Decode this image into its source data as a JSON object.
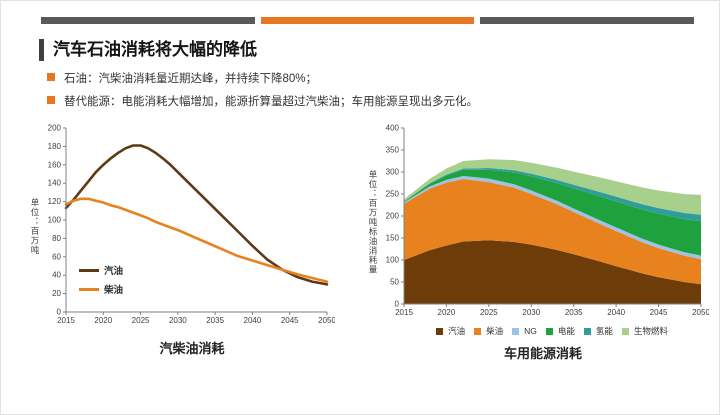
{
  "slide": {
    "title": "汽车石油消耗将大幅的降低",
    "bullets": [
      "石油：汽柴油消耗量近期达峰，并持续下降80%；",
      "替代能源：电能消耗大幅增加，能源折算量超过汽柴油；车用能源呈现出多元化。"
    ]
  },
  "colors": {
    "accent_orange": "#e87722",
    "accent_gray": "#595959",
    "gasoline_brown": "#5e3a14",
    "diesel_orange": "#e8821f",
    "electric_green": "#1fa23e",
    "ng_blue": "#9dc3e6",
    "hydrogen_teal": "#2f9e9b",
    "biofuel_green": "#a8d08d"
  },
  "chart_data": [
    {
      "type": "line",
      "title": "汽柴油消耗",
      "ylabel": "单位：百万吨",
      "xlabel": "",
      "xlim": [
        2015,
        2050
      ],
      "ylim": [
        0,
        200
      ],
      "xticks": [
        2015,
        2020,
        2025,
        2030,
        2035,
        2040,
        2045,
        2050
      ],
      "yticks": [
        0,
        20,
        40,
        60,
        80,
        100,
        120,
        140,
        160,
        180,
        200
      ],
      "grid": false,
      "legend_marker": "line",
      "legend_position": "inside-lower-left",
      "x": [
        2015,
        2016,
        2017,
        2018,
        2019,
        2020,
        2021,
        2022,
        2023,
        2024,
        2025,
        2026,
        2027,
        2028,
        2029,
        2030,
        2032,
        2034,
        2036,
        2038,
        2040,
        2042,
        2044,
        2046,
        2048,
        2050
      ],
      "series": [
        {
          "name": "汽油",
          "color": "#5e3a14",
          "values": [
            113,
            122,
            132,
            142,
            152,
            160,
            167,
            173,
            178,
            181,
            181,
            178,
            173,
            167,
            160,
            152,
            136,
            120,
            104,
            88,
            72,
            57,
            46,
            38,
            33,
            30
          ]
        },
        {
          "name": "柴油",
          "color": "#e8821f",
          "values": [
            117,
            121,
            123,
            123,
            121,
            119,
            116,
            114,
            111,
            108,
            105,
            102,
            98,
            95,
            92,
            89,
            82,
            75,
            68,
            61,
            56,
            51,
            46,
            41,
            37,
            33
          ]
        }
      ]
    },
    {
      "type": "area",
      "title": "车用能源消耗",
      "ylabel": "单位：百万吨标油消耗量",
      "xlabel": "",
      "xlim": [
        2015,
        2050
      ],
      "ylim": [
        0,
        400
      ],
      "xticks": [
        2015,
        2020,
        2025,
        2030,
        2035,
        2040,
        2045,
        2050
      ],
      "yticks": [
        0,
        50,
        100,
        150,
        200,
        250,
        300,
        350,
        400
      ],
      "grid": false,
      "legend_marker": "square",
      "legend_position": "below",
      "x": [
        2015,
        2018,
        2020,
        2022,
        2025,
        2028,
        2030,
        2033,
        2035,
        2038,
        2040,
        2043,
        2045,
        2048,
        2050
      ],
      "series": [
        {
          "name": "汽油",
          "color": "#6e3c08",
          "values": [
            100,
            122,
            133,
            142,
            145,
            141,
            135,
            123,
            113,
            97,
            86,
            70,
            61,
            50,
            45
          ]
        },
        {
          "name": "柴油",
          "color": "#e8821f",
          "values": [
            128,
            140,
            143,
            142,
            132,
            123,
            115,
            104,
            96,
            86,
            80,
            71,
            66,
            60,
            57
          ]
        },
        {
          "name": "NG",
          "color": "#9dc3e6",
          "values": [
            3,
            5,
            6,
            7,
            8,
            8,
            8,
            8,
            8,
            8,
            8,
            8,
            8,
            8,
            8
          ]
        },
        {
          "name": "电能",
          "color": "#1fa23e",
          "values": [
            2,
            6,
            10,
            14,
            20,
            27,
            32,
            40,
            46,
            54,
            59,
            66,
            70,
            75,
            78
          ]
        },
        {
          "name": "氢能",
          "color": "#2f9e9b",
          "values": [
            0,
            1,
            2,
            3,
            4,
            5,
            6,
            7,
            8,
            10,
            11,
            12,
            13,
            14,
            15
          ]
        },
        {
          "name": "生物燃料",
          "color": "#a8d08d",
          "values": [
            5,
            10,
            14,
            17,
            20,
            23,
            25,
            28,
            30,
            33,
            35,
            38,
            40,
            43,
            45
          ]
        }
      ]
    }
  ]
}
